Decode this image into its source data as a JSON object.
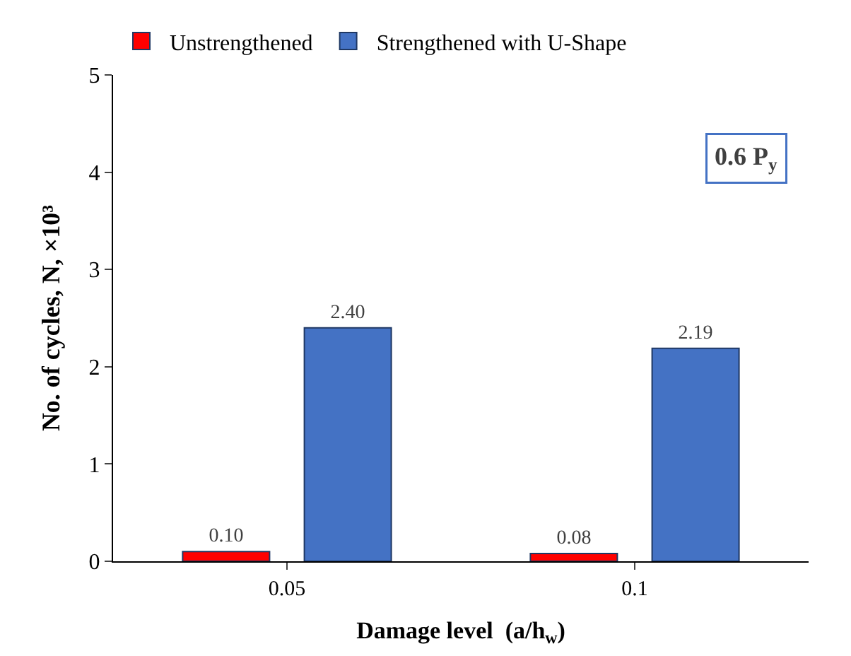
{
  "chart_data": {
    "type": "bar",
    "xlabel": "Damage level  (a/h$_{w}$)",
    "ylabel": "No. of cycles, N, ×10³",
    "categories": [
      "0.05",
      "0.1"
    ],
    "series": [
      {
        "name": "Unstrengthened",
        "color": "#ff0000",
        "values": [
          0.1,
          0.08
        ],
        "value_labels": [
          "0.10",
          "0.08"
        ]
      },
      {
        "name": "Strengthened with U-Shape",
        "color": "#4472c4",
        "values": [
          2.4,
          2.19
        ],
        "value_labels": [
          "2.40",
          "2.19"
        ]
      }
    ],
    "ylim": [
      0,
      5
    ],
    "yticks": [
      0,
      1,
      2,
      3,
      4,
      5
    ],
    "legend": "top",
    "annotations": [
      "0.6 P$_{y}$"
    ]
  }
}
